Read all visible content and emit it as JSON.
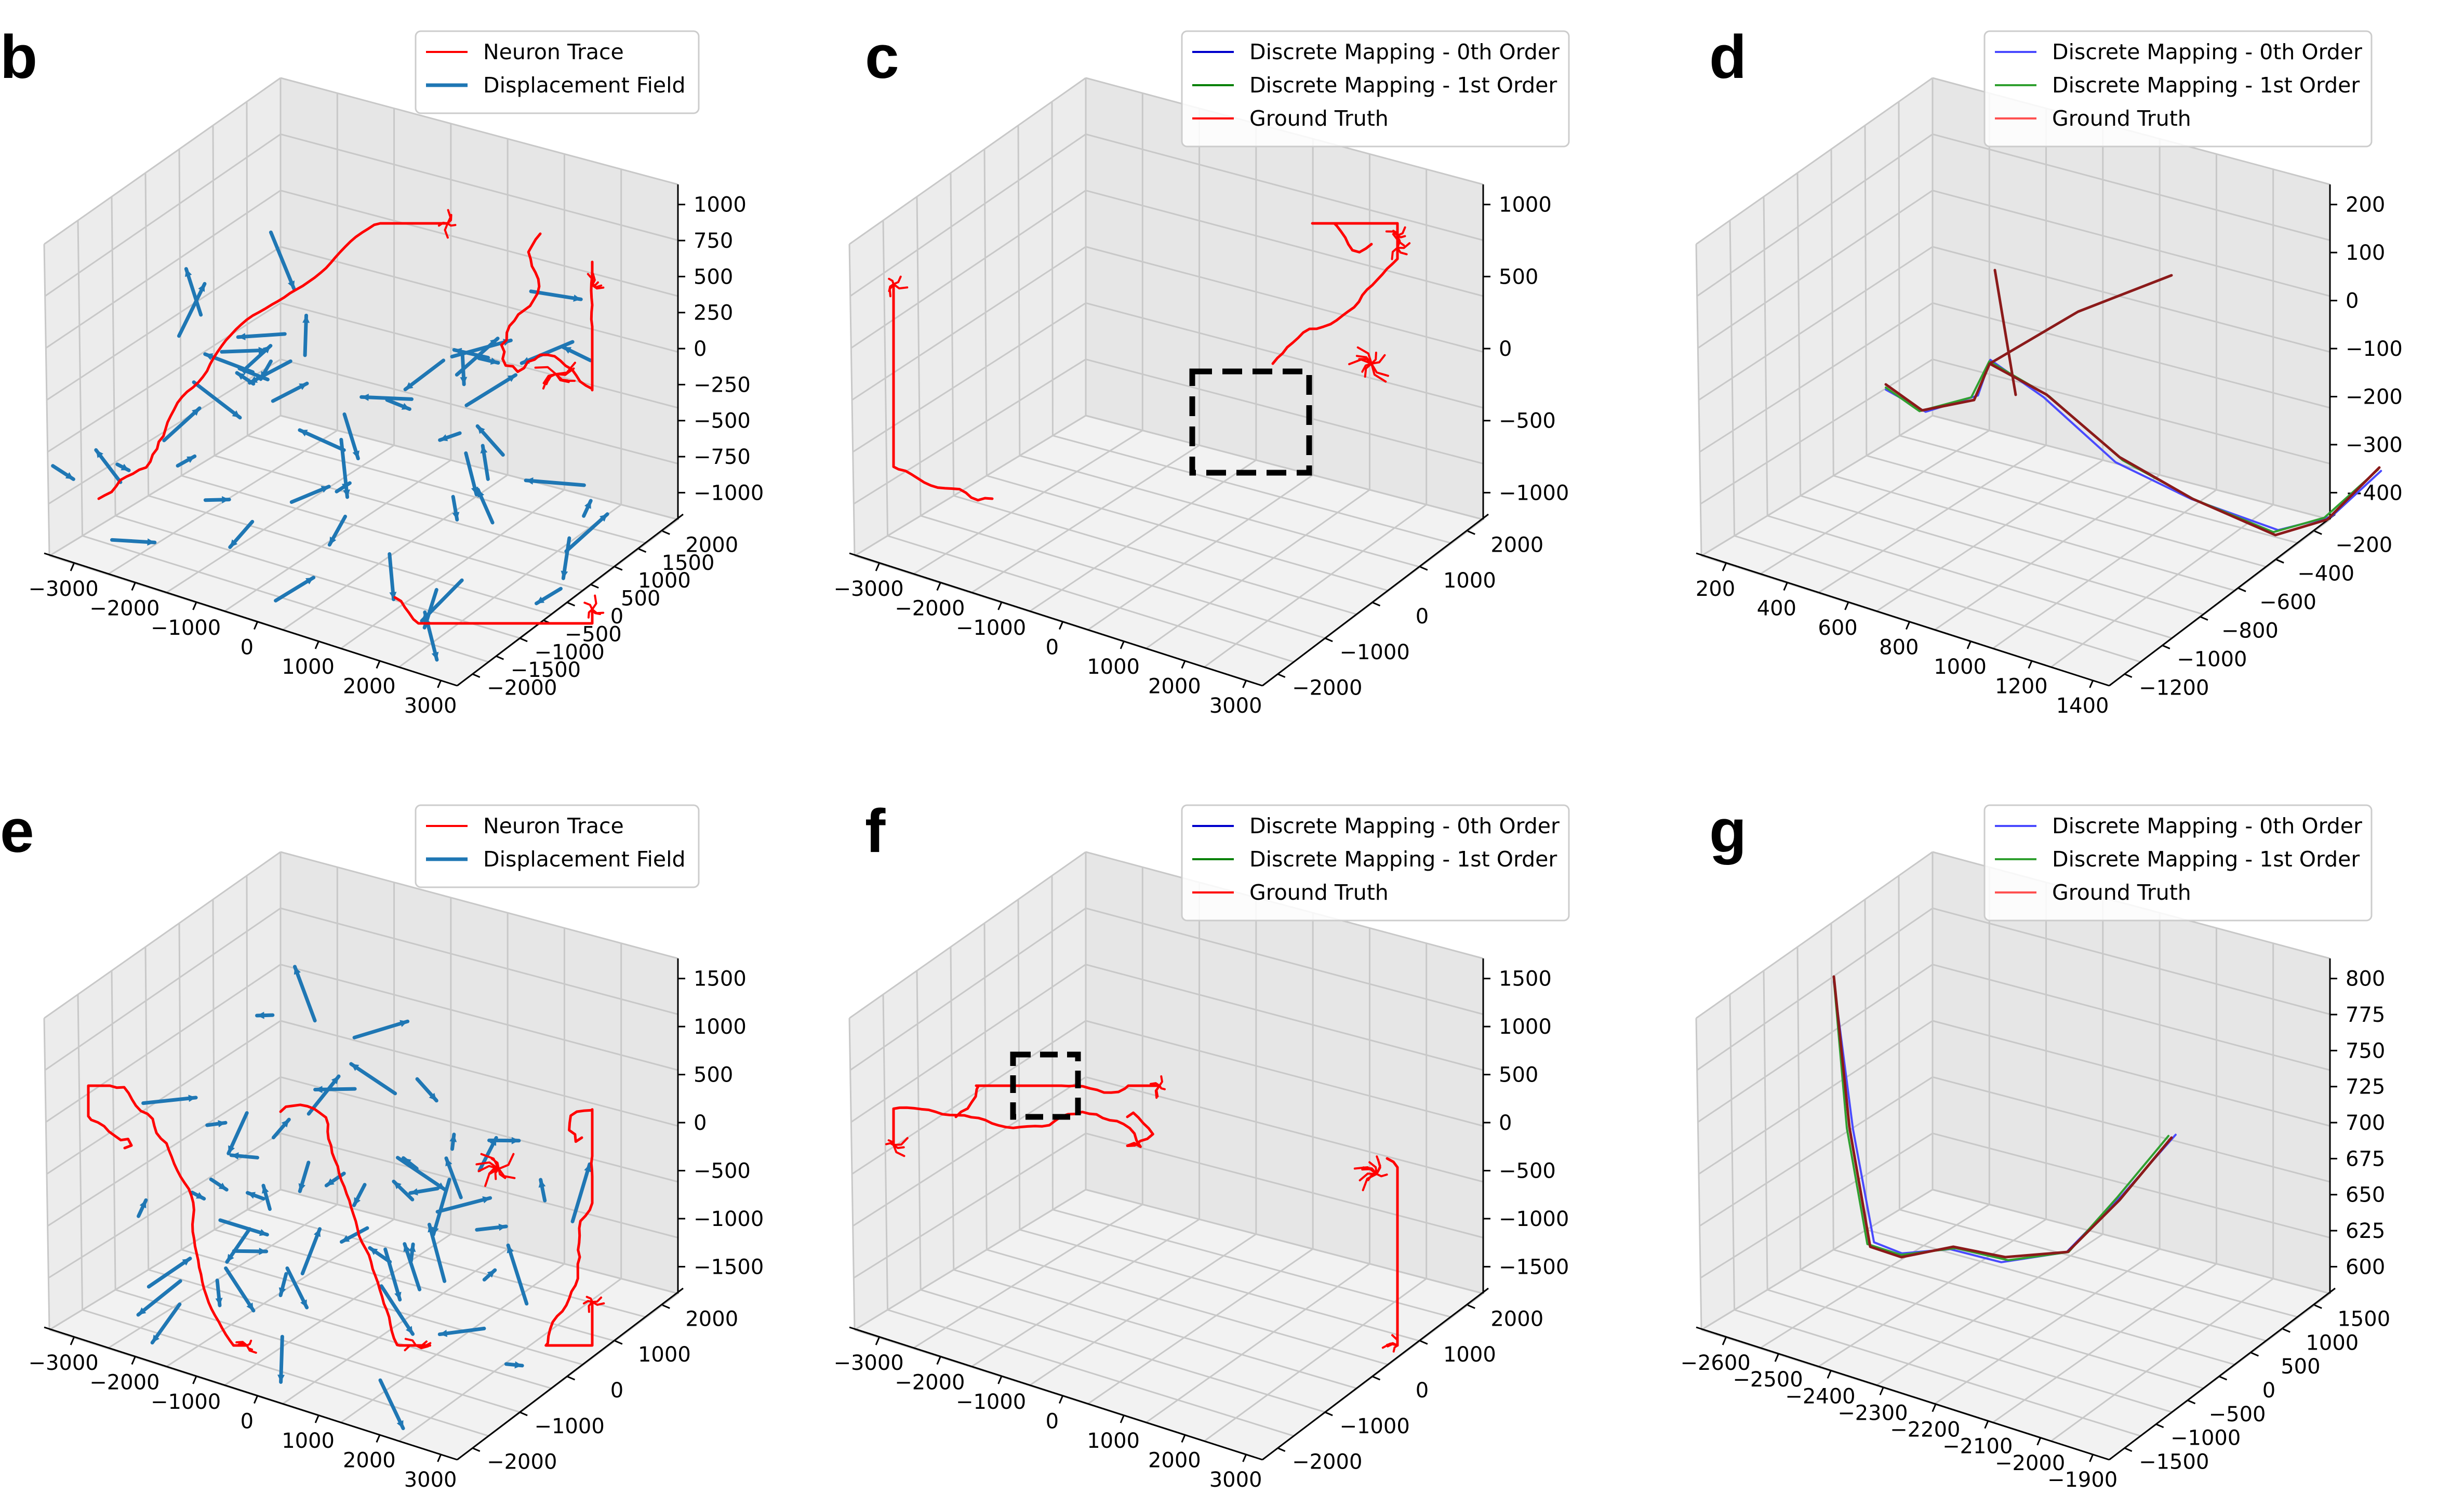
{
  "chart_data": [
    {
      "panel": "b",
      "type": "line3d",
      "series": [
        {
          "name": "Neuron Trace",
          "color": "#ff0000"
        },
        {
          "name": "Displacement Field",
          "color": "#1f77b4"
        }
      ],
      "x_ticks": [
        "−3000",
        "−2000",
        "−1000",
        "0",
        "1000",
        "2000",
        "3000"
      ],
      "y_ticks": [
        "−2000",
        "−1500",
        "−1000",
        "−500",
        "0",
        "500",
        "1000",
        "1500",
        "2000"
      ],
      "z_ticks": [
        "1000",
        "750",
        "500",
        "250",
        "0",
        "−250",
        "−500",
        "−750",
        "−1000"
      ],
      "legend": "top-right",
      "grid": true
    },
    {
      "panel": "c",
      "type": "line3d",
      "series": [
        {
          "name": "Discrete Mapping - 0th Order",
          "color": "#0000cc"
        },
        {
          "name": "Discrete Mapping - 1st Order",
          "color": "#008000"
        },
        {
          "name": "Ground Truth",
          "color": "#ff0000"
        }
      ],
      "x_ticks": [
        "−3000",
        "−2000",
        "−1000",
        "0",
        "1000",
        "2000",
        "3000"
      ],
      "y_ticks": [
        "−2000",
        "−1000",
        "0",
        "1000",
        "2000"
      ],
      "z_ticks": [
        "1000",
        "500",
        "0",
        "−500",
        "−1000"
      ],
      "legend": "top-right",
      "grid": true
    },
    {
      "panel": "d",
      "type": "line3d",
      "series": [
        {
          "name": "Discrete Mapping - 0th Order",
          "color": "#4a4aff"
        },
        {
          "name": "Discrete Mapping - 1st Order",
          "color": "#30a030"
        },
        {
          "name": "Ground Truth",
          "color": "#ff5050"
        }
      ],
      "x_ticks": [
        "200",
        "400",
        "600",
        "800",
        "1000",
        "1200",
        "1400"
      ],
      "y_ticks": [
        "−1200",
        "−1000",
        "−800",
        "−600",
        "−400",
        "−200"
      ],
      "z_ticks": [
        "200",
        "100",
        "0",
        "−100",
        "−200",
        "−300",
        "−400"
      ],
      "legend": "top-right",
      "grid": true
    },
    {
      "panel": "e",
      "type": "line3d",
      "series": [
        {
          "name": "Neuron Trace",
          "color": "#ff0000"
        },
        {
          "name": "Displacement Field",
          "color": "#1f77b4"
        }
      ],
      "x_ticks": [
        "−3000",
        "−2000",
        "−1000",
        "0",
        "1000",
        "2000",
        "3000"
      ],
      "y_ticks": [
        "−2000",
        "−1000",
        "0",
        "1000",
        "2000"
      ],
      "z_ticks": [
        "1500",
        "1000",
        "500",
        "0",
        "−500",
        "−1000",
        "−1500"
      ],
      "legend": "top-right",
      "grid": true
    },
    {
      "panel": "f",
      "type": "line3d",
      "series": [
        {
          "name": "Discrete Mapping - 0th Order",
          "color": "#0000cc"
        },
        {
          "name": "Discrete Mapping - 1st Order",
          "color": "#008000"
        },
        {
          "name": "Ground Truth",
          "color": "#ff0000"
        }
      ],
      "x_ticks": [
        "−3000",
        "−2000",
        "−1000",
        "0",
        "1000",
        "2000",
        "3000"
      ],
      "y_ticks": [
        "−2000",
        "−1000",
        "0",
        "1000",
        "2000"
      ],
      "z_ticks": [
        "1500",
        "1000",
        "500",
        "0",
        "−500",
        "−1000",
        "−1500"
      ],
      "legend": "top-right",
      "grid": true
    },
    {
      "panel": "g",
      "type": "line3d",
      "series": [
        {
          "name": "Discrete Mapping - 0th Order",
          "color": "#4a4aff"
        },
        {
          "name": "Discrete Mapping - 1st Order",
          "color": "#30a030"
        },
        {
          "name": "Ground Truth",
          "color": "#ff5050"
        }
      ],
      "x_ticks": [
        "−2600",
        "−2500",
        "−2400",
        "−2300",
        "−2200",
        "−2100",
        "−2000",
        "−1900"
      ],
      "y_ticks": [
        "−1500",
        "−1000",
        "−500",
        "0",
        "500",
        "1000",
        "1500"
      ],
      "z_ticks": [
        "800",
        "775",
        "750",
        "725",
        "700",
        "675",
        "650",
        "625",
        "600"
      ],
      "legend": "top-right",
      "grid": true
    }
  ]
}
